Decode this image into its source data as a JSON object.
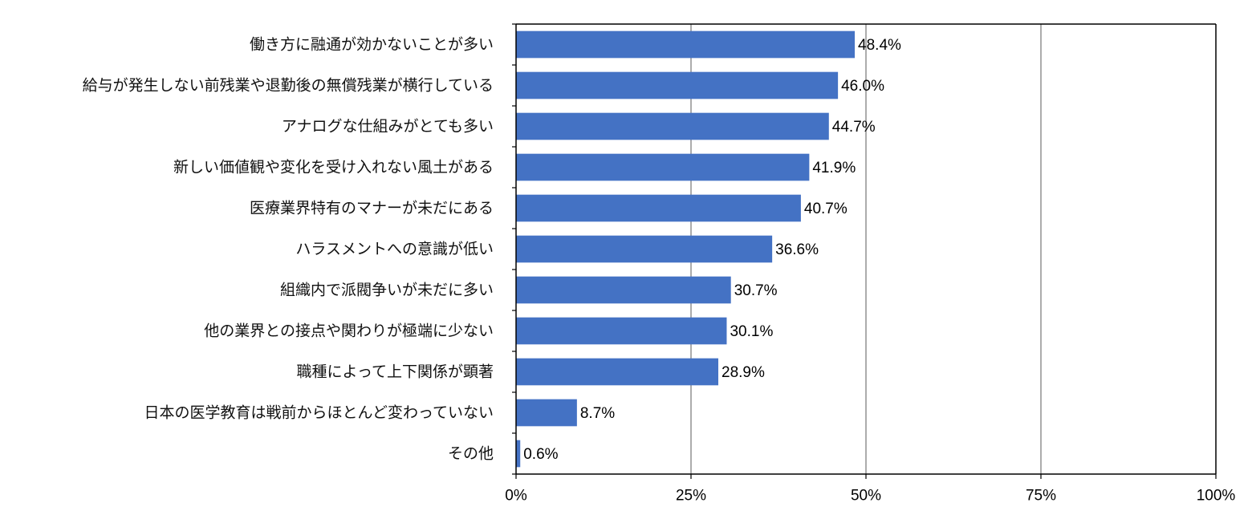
{
  "chart_data": {
    "type": "bar",
    "orientation": "horizontal",
    "categories": [
      "働き方に融通が効かないことが多い",
      "給与が発生しない前残業や退勤後の無償残業が横行している",
      "アナログな仕組みがとても多い",
      "新しい価値観や変化を受け入れない風土がある",
      "医療業界特有のマナーが未だにある",
      "ハラスメントへの意識が低い",
      "組織内で派閥争いが未だに多い",
      "他の業界との接点や関わりが極端に少ない",
      "職種によって上下関係が顕著",
      "日本の医学教育は戦前からほとんど変わっていない",
      "その他"
    ],
    "values": [
      48.4,
      46.0,
      44.7,
      41.9,
      40.7,
      36.6,
      30.7,
      30.1,
      28.9,
      8.7,
      0.6
    ],
    "value_labels": [
      "48.4%",
      "46.0%",
      "44.7%",
      "41.9%",
      "40.7%",
      "36.6%",
      "30.7%",
      "30.1%",
      "28.9%",
      "8.7%",
      "0.6%"
    ],
    "xlim": [
      0,
      100
    ],
    "xticks": [
      0,
      25,
      50,
      75,
      100
    ],
    "xtick_labels": [
      "0%",
      "25%",
      "50%",
      "75%",
      "100%"
    ],
    "grid": "vertical",
    "legend": "none",
    "title": "",
    "xlabel": "",
    "ylabel": "",
    "colors": {
      "bar": "#4472C4",
      "grid": "#7f7f7f",
      "axis": "#000000"
    }
  }
}
